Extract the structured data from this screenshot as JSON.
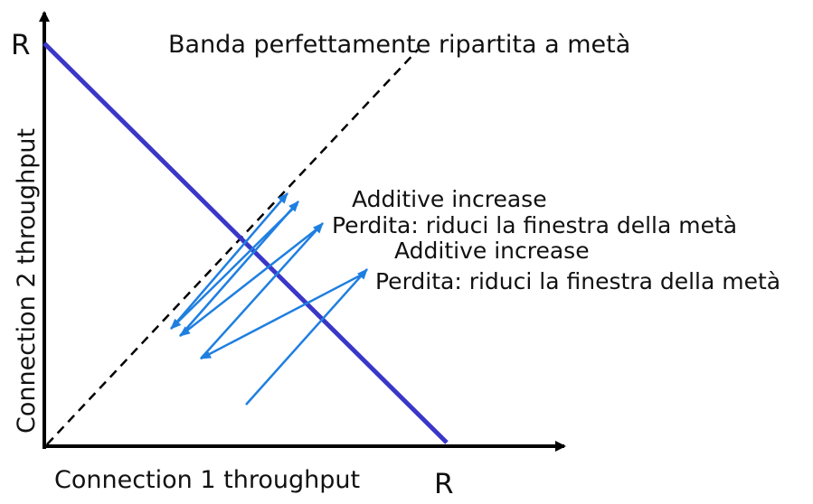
{
  "labels": {
    "y_max": "R",
    "x_max": "R",
    "y_axis": "Connection 2 throughput",
    "x_axis": "Connection 1 throughput",
    "fair_line": "Banda perfettamente ripartita a metà",
    "additive_increase_1": "Additive increase",
    "loss_1": "Perdita: riduci la finestra della metà",
    "additive_increase_2": "Additive increase",
    "loss_2": "Perdita: riduci la finestra della metà"
  },
  "colors": {
    "axis": "#000000",
    "capacity_line": "#3a37c8",
    "fair_line": "#000000",
    "trajectory": "#1f7fe0"
  }
}
